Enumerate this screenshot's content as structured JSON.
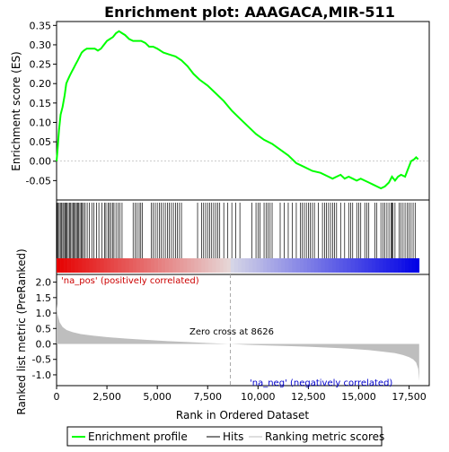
{
  "chart_data": [
    {
      "type": "line",
      "title": "Enrichment plot: AAAGACA,MIR-511",
      "ylabel": "Enrichment score (ES)",
      "ylim": [
        -0.1,
        0.36
      ],
      "xlim": [
        0,
        18500
      ],
      "yticks": [
        -0.05,
        0.0,
        0.05,
        0.1,
        0.15,
        0.2,
        0.25,
        0.3,
        0.35
      ],
      "ytick_labels": [
        "-0.05",
        "0.00",
        "0.05",
        "0.10",
        "0.15",
        "0.20",
        "0.25",
        "0.30",
        "0.35"
      ],
      "grid": false,
      "series": [
        {
          "name": "Enrichment profile",
          "color": "#00ff00",
          "x": [
            0,
            50,
            120,
            200,
            300,
            400,
            480,
            560,
            650,
            750,
            850,
            950,
            1050,
            1150,
            1250,
            1350,
            1500,
            1700,
            1900,
            2050,
            2200,
            2350,
            2500,
            2650,
            2800,
            2950,
            3100,
            3250,
            3400,
            3600,
            3800,
            4000,
            4200,
            4400,
            4600,
            4800,
            5000,
            5300,
            5600,
            5900,
            6200,
            6500,
            6800,
            7100,
            7500,
            7900,
            8300,
            8700,
            9100,
            9500,
            9900,
            10300,
            10700,
            11100,
            11500,
            11900,
            12300,
            12700,
            13100,
            13500,
            13700,
            13900,
            14100,
            14300,
            14500,
            14700,
            14900,
            15100,
            15300,
            15500,
            15700,
            15900,
            16100,
            16300,
            16500,
            16650,
            16800,
            16950,
            17100,
            17300,
            17450,
            17600,
            17750,
            17850,
            17950
          ],
          "y": [
            0.0,
            0.03,
            0.08,
            0.12,
            0.14,
            0.17,
            0.2,
            0.21,
            0.22,
            0.23,
            0.24,
            0.25,
            0.26,
            0.27,
            0.28,
            0.285,
            0.29,
            0.29,
            0.29,
            0.285,
            0.29,
            0.3,
            0.31,
            0.315,
            0.32,
            0.33,
            0.335,
            0.33,
            0.325,
            0.315,
            0.31,
            0.31,
            0.31,
            0.305,
            0.295,
            0.295,
            0.29,
            0.28,
            0.275,
            0.27,
            0.26,
            0.245,
            0.225,
            0.21,
            0.195,
            0.175,
            0.155,
            0.13,
            0.11,
            0.09,
            0.07,
            0.055,
            0.045,
            0.03,
            0.015,
            -0.005,
            -0.015,
            -0.025,
            -0.03,
            -0.04,
            -0.045,
            -0.04,
            -0.035,
            -0.045,
            -0.04,
            -0.045,
            -0.05,
            -0.045,
            -0.05,
            -0.055,
            -0.06,
            -0.065,
            -0.07,
            -0.065,
            -0.055,
            -0.04,
            -0.05,
            -0.04,
            -0.035,
            -0.04,
            -0.02,
            0.0,
            0.005,
            0.01,
            0.005
          ]
        }
      ]
    },
    {
      "type": "heatmap",
      "hit_positions": [
        30,
        80,
        130,
        190,
        250,
        310,
        360,
        420,
        470,
        520,
        580,
        640,
        700,
        760,
        820,
        880,
        930,
        990,
        1050,
        1100,
        1160,
        1220,
        1280,
        1340,
        1420,
        1520,
        1620,
        1750,
        1850,
        1980,
        2100,
        2250,
        2380,
        2450,
        2550,
        2620,
        2700,
        2780,
        2850,
        2950,
        3050,
        3150,
        3250,
        3800,
        3900,
        4000,
        4100,
        4180,
        4250,
        4700,
        4800,
        4900,
        5000,
        5100,
        5200,
        5300,
        5400,
        5500,
        5600,
        5700,
        5800,
        5900,
        6000,
        6100,
        6200,
        7000,
        7200,
        7300,
        7400,
        7500,
        7600,
        7700,
        7800,
        7900,
        8000,
        8100,
        8300,
        8500,
        8700,
        8900,
        9100,
        9700,
        9900,
        10000,
        10100,
        10300,
        10400,
        10500,
        10600,
        10700,
        11100,
        11300,
        11500,
        11700,
        11900,
        12100,
        12200,
        12300,
        12400,
        12500,
        12600,
        12700,
        12800,
        13000,
        13200,
        13300,
        13400,
        13500,
        13600,
        13700,
        13800,
        13900,
        14100,
        14300,
        14500,
        14600,
        14700,
        14900,
        15000,
        15100,
        15300,
        15400,
        15500,
        15800,
        15900,
        16100,
        16200,
        16300,
        16400,
        16500,
        16600,
        16650,
        16700,
        16800,
        17000,
        17100,
        17200,
        17300,
        17400,
        17500,
        17600,
        17700,
        17800
      ],
      "xlim": [
        0,
        18500
      ]
    },
    {
      "type": "area",
      "xlabel": "Rank in Ordered Dataset",
      "ylabel": "Ranked list metric (PreRanked)",
      "ylim": [
        -1.35,
        2.25
      ],
      "xlim": [
        0,
        18500
      ],
      "yticks": [
        -1.0,
        -0.5,
        0.0,
        0.5,
        1.0,
        1.5,
        2.0
      ],
      "ytick_labels": [
        "-1.0",
        "-0.5",
        "0.0",
        "0.5",
        "1.0",
        "1.5",
        "2.0"
      ],
      "xticks": [
        0,
        2500,
        5000,
        7500,
        10000,
        12500,
        15000,
        17500
      ],
      "xtick_labels": [
        "0",
        "2,500",
        "5,000",
        "7,500",
        "10,000",
        "12,500",
        "15,000",
        "17,500"
      ],
      "x": [
        0,
        50,
        150,
        300,
        500,
        800,
        1200,
        1800,
        2500,
        3500,
        4500,
        5500,
        6500,
        7500,
        8626,
        9500,
        10500,
        11500,
        12500,
        13500,
        14500,
        15500,
        16200,
        16800,
        17200,
        17500,
        17700,
        17850,
        17950,
        18000
      ],
      "values": [
        1.3,
        0.95,
        0.7,
        0.55,
        0.45,
        0.38,
        0.32,
        0.27,
        0.22,
        0.17,
        0.13,
        0.09,
        0.06,
        0.03,
        0.0,
        -0.03,
        -0.05,
        -0.07,
        -0.09,
        -0.12,
        -0.15,
        -0.2,
        -0.25,
        -0.3,
        -0.36,
        -0.43,
        -0.5,
        -0.6,
        -0.8,
        -1.2
      ],
      "zero_cross": 8626,
      "zero_cross_label": "Zero cross at 8626",
      "pos_label": "'na_pos' (positively correlated)",
      "neg_label": "'na_neg' (negatively correlated)"
    }
  ],
  "legend": {
    "items": [
      {
        "label": "Enrichment profile",
        "color": "#00ff00"
      },
      {
        "label": "Hits",
        "color": "#000000"
      },
      {
        "label": "Ranking metric scores",
        "color": "#bebebe"
      }
    ]
  },
  "colors": {
    "profile": "#00ff00",
    "hits": "#000000",
    "metric_fill": "#bebebe",
    "pos_text": "#cc0000",
    "neg_text": "#0000cc",
    "zero_line": "#aaaaaa"
  }
}
